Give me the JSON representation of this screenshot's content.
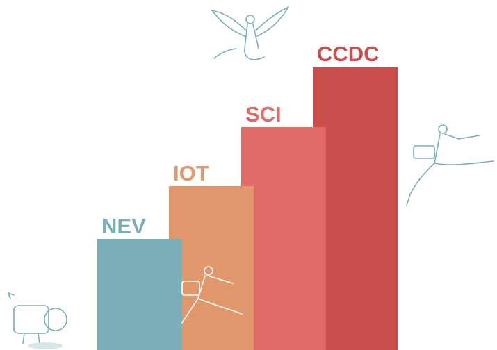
{
  "steps": [
    {
      "label": "NEV"
    },
    {
      "label": "IOT"
    },
    {
      "label": "SCI"
    },
    {
      "label": "CCDC"
    }
  ]
}
